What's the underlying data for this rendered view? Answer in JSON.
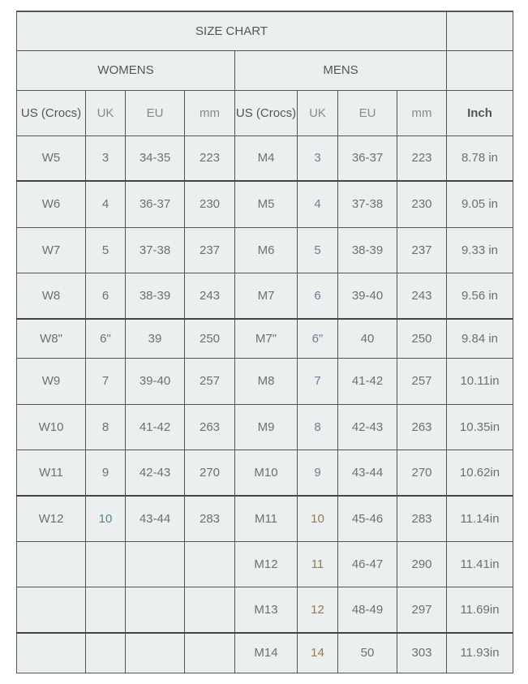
{
  "title": "SIZE CHART",
  "groups": {
    "womens": "WOMENS",
    "mens": "MENS"
  },
  "columns": [
    "US (Crocs)",
    "UK",
    "EU",
    "mm",
    "US (Crocs)",
    "UK",
    "EU",
    "mm",
    "Inch"
  ],
  "rows": [
    [
      "W5",
      "3",
      "34-35",
      "223",
      "M4",
      "3",
      "36-37",
      "223",
      "8.78 in"
    ],
    [
      "W6",
      "4",
      "36-37",
      "230",
      "M5",
      "4",
      "37-38",
      "230",
      "9.05 in"
    ],
    [
      "W7",
      "5",
      "37-38",
      "237",
      "M6",
      "5",
      "38-39",
      "237",
      "9.33 in"
    ],
    [
      "W8",
      "6",
      "38-39",
      "243",
      "M7",
      "6",
      "39-40",
      "243",
      "9.56 in"
    ],
    [
      "W8\"",
      "6\"",
      "39",
      "250",
      "M7\"",
      "6\"",
      "40",
      "250",
      "9.84 in"
    ],
    [
      "W9",
      "7",
      "39-40",
      "257",
      "M8",
      "7",
      "41-42",
      "257",
      "10.11in"
    ],
    [
      "W10",
      "8",
      "41-42",
      "263",
      "M9",
      "8",
      "42-43",
      "263",
      "10.35in"
    ],
    [
      "W11",
      "9",
      "42-43",
      "270",
      "M10",
      "9",
      "43-44",
      "270",
      "10.62in"
    ],
    [
      "W12",
      "10",
      "43-44",
      "283",
      "M11",
      "10",
      "45-46",
      "283",
      "11.14in"
    ],
    [
      "",
      "",
      "",
      "",
      "M12",
      "11",
      "46-47",
      "290",
      "11.41in"
    ],
    [
      "",
      "",
      "",
      "",
      "M13",
      "12",
      "48-49",
      "297",
      "11.69in"
    ],
    [
      "",
      "",
      "",
      "",
      "M14",
      "14",
      "50",
      "303",
      "11.93in"
    ]
  ]
}
